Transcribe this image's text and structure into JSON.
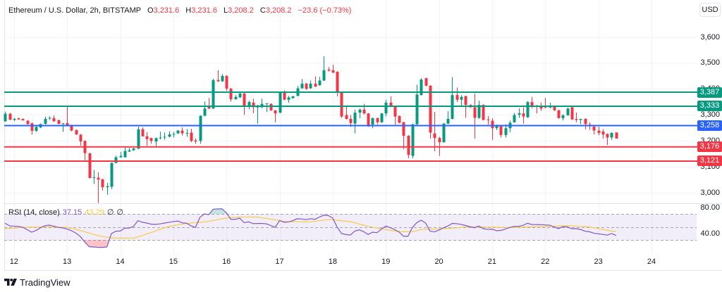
{
  "header": {
    "ohlc": [
      {
        "label": "O",
        "value": "3,231.6"
      },
      {
        "label": "H",
        "value": "3,231.6"
      },
      {
        "label": "L",
        "value": "3,208.2"
      },
      {
        "label": "C",
        "value": "3,208.2"
      }
    ],
    "change": "−23.6 (−0.73%)"
  },
  "price_axis": {
    "currency": "USD"
  },
  "footer": {
    "brand": "TradingView",
    "logo_icon": "tradingview-logo-icon"
  },
  "colors": {
    "up": "#089981",
    "down": "#f23645",
    "grid": "#f0f3fa",
    "border": "#e0e3eb",
    "rsi": "#7e57c2",
    "ma": "#f7c948",
    "rsi_band": "rgba(126,87,194,0.10)",
    "band_line": "#a3a6af",
    "oversold": "rgba(242,54,69,0.30)",
    "overbought": "rgba(8,153,129,0.25)"
  },
  "chart_data": [
    {
      "type": "bar",
      "title": "Ethereum / U.S. Dollar, 2h, BITSTAMP",
      "xlim": [
        -0.2,
        156.2
      ],
      "ylim": [
        2958,
        3743
      ],
      "grid": true,
      "x_ticks": [
        {
          "label": "12",
          "bar": 2
        },
        {
          "label": "13",
          "bar": 14
        },
        {
          "label": "14",
          "bar": 26
        },
        {
          "label": "15",
          "bar": 38
        },
        {
          "label": "16",
          "bar": 50
        },
        {
          "label": "17",
          "bar": 62
        },
        {
          "label": "18",
          "bar": 74
        },
        {
          "label": "19",
          "bar": 86
        },
        {
          "label": "20",
          "bar": 98
        },
        {
          "label": "21",
          "bar": 110
        },
        {
          "label": "22",
          "bar": 122
        },
        {
          "label": "23",
          "bar": 134
        },
        {
          "label": "24",
          "bar": 146
        }
      ],
      "y_ticks": [
        {
          "value": 3000,
          "label": "3,000"
        },
        {
          "value": 3100,
          "label": "3,100"
        },
        {
          "value": 3200,
          "label": "3,200"
        },
        {
          "value": 3300,
          "label": "3,300"
        },
        {
          "value": 3400,
          "label": "3,400"
        },
        {
          "value": 3500,
          "label": "3,500"
        },
        {
          "value": 3600,
          "label": "3,600"
        }
      ],
      "levels": [
        {
          "price": 3387,
          "label": "3,387",
          "color": "#089981"
        },
        {
          "price": 3333,
          "label": "3,333",
          "color": "#089981"
        },
        {
          "price": 3258,
          "label": "3,258",
          "color": "#2962ff"
        },
        {
          "price": 3176,
          "label": "3,176",
          "color": "#f23645"
        },
        {
          "price": 3121,
          "label": "3,121",
          "color": "#f23645"
        }
      ],
      "candles": [
        [
          3275,
          3312,
          3272,
          3304
        ],
        [
          3304,
          3307,
          3279,
          3281
        ],
        [
          3280,
          3288,
          3276,
          3284
        ],
        [
          3286,
          3289,
          3280,
          3282
        ],
        [
          3284,
          3286,
          3277,
          3279
        ],
        [
          3277,
          3279,
          3262,
          3264
        ],
        [
          3267,
          3270,
          3224,
          3238
        ],
        [
          3238,
          3256,
          3234,
          3253
        ],
        [
          3251,
          3266,
          3248,
          3264
        ],
        [
          3265,
          3293,
          3262,
          3284
        ],
        [
          3286,
          3294,
          3280,
          3288
        ],
        [
          3287,
          3297,
          3273,
          3275
        ],
        [
          3279,
          3281,
          3263,
          3265
        ],
        [
          3265,
          3268,
          3234,
          3267
        ],
        [
          3268,
          3335,
          3258,
          3260
        ],
        [
          3259,
          3262,
          3236,
          3239
        ],
        [
          3241,
          3243,
          3222,
          3224
        ],
        [
          3223,
          3226,
          3181,
          3197
        ],
        [
          3199,
          3201,
          3125,
          3152
        ],
        [
          3151,
          3153,
          3054,
          3056
        ],
        [
          3057,
          3087,
          3033,
          3059
        ],
        [
          3057,
          3078,
          2959,
          3050
        ],
        [
          3051,
          3053,
          3008,
          3020
        ],
        [
          3020,
          3037,
          2991,
          3024
        ],
        [
          3022,
          3116,
          3013,
          3114
        ],
        [
          3114,
          3142,
          3112,
          3136
        ],
        [
          3136,
          3156,
          3134,
          3141
        ],
        [
          3136,
          3177,
          3134,
          3160
        ],
        [
          3158,
          3172,
          3156,
          3163
        ],
        [
          3163,
          3172,
          3161,
          3170
        ],
        [
          3169,
          3254,
          3167,
          3244
        ],
        [
          3244,
          3251,
          3215,
          3217
        ],
        [
          3217,
          3233,
          3181,
          3206
        ],
        [
          3210,
          3212,
          3188,
          3199
        ],
        [
          3197,
          3212,
          3179,
          3210
        ],
        [
          3210,
          3235,
          3205,
          3212
        ],
        [
          3213,
          3232,
          3203,
          3215
        ],
        [
          3215,
          3236,
          3213,
          3224
        ],
        [
          3224,
          3234,
          3212,
          3226
        ],
        [
          3228,
          3241,
          3226,
          3239
        ],
        [
          3239,
          3251,
          3220,
          3228
        ],
        [
          3229,
          3245,
          3215,
          3230
        ],
        [
          3231,
          3246,
          3194,
          3199
        ],
        [
          3201,
          3209,
          3188,
          3197
        ],
        [
          3199,
          3298,
          3188,
          3296
        ],
        [
          3296,
          3351,
          3294,
          3324
        ],
        [
          3333,
          3365,
          3322,
          3324
        ],
        [
          3324,
          3439,
          3322,
          3434
        ],
        [
          3434,
          3472,
          3427,
          3429
        ],
        [
          3429,
          3457,
          3427,
          3450
        ],
        [
          3450,
          3452,
          3392,
          3401
        ],
        [
          3401,
          3403,
          3351,
          3360
        ],
        [
          3360,
          3376,
          3358,
          3369
        ],
        [
          3367,
          3384,
          3365,
          3382
        ],
        [
          3382,
          3384,
          3299,
          3333
        ],
        [
          3333,
          3355,
          3321,
          3349
        ],
        [
          3347,
          3362,
          3306,
          3329
        ],
        [
          3329,
          3338,
          3266,
          3331
        ],
        [
          3329,
          3362,
          3325,
          3342
        ],
        [
          3342,
          3345,
          3310,
          3344
        ],
        [
          3342,
          3344,
          3315,
          3317
        ],
        [
          3317,
          3318,
          3271,
          3305
        ],
        [
          3308,
          3387,
          3306,
          3385
        ],
        [
          3385,
          3394,
          3356,
          3358
        ],
        [
          3358,
          3373,
          3346,
          3367
        ],
        [
          3364,
          3373,
          3362,
          3371
        ],
        [
          3373,
          3411,
          3371,
          3402
        ],
        [
          3402,
          3438,
          3400,
          3420
        ],
        [
          3420,
          3423,
          3396,
          3400
        ],
        [
          3402,
          3432,
          3400,
          3420
        ],
        [
          3420,
          3448,
          3407,
          3409
        ],
        [
          3414,
          3446,
          3412,
          3432
        ],
        [
          3432,
          3526,
          3430,
          3472
        ],
        [
          3474,
          3484,
          3467,
          3470
        ],
        [
          3472,
          3493,
          3460,
          3463
        ],
        [
          3466,
          3468,
          3371,
          3387
        ],
        [
          3387,
          3389,
          3288,
          3293
        ],
        [
          3299,
          3335,
          3282,
          3284
        ],
        [
          3284,
          3299,
          3253,
          3268
        ],
        [
          3266,
          3320,
          3228,
          3308
        ],
        [
          3308,
          3324,
          3286,
          3320
        ],
        [
          3320,
          3342,
          3301,
          3305
        ],
        [
          3305,
          3307,
          3253,
          3255
        ],
        [
          3262,
          3289,
          3248,
          3287
        ],
        [
          3287,
          3289,
          3263,
          3271
        ],
        [
          3271,
          3307,
          3269,
          3305
        ],
        [
          3305,
          3358,
          3294,
          3347
        ],
        [
          3347,
          3371,
          3329,
          3333
        ],
        [
          3331,
          3333,
          3262,
          3293
        ],
        [
          3295,
          3297,
          3267,
          3269
        ],
        [
          3271,
          3273,
          3167,
          3219
        ],
        [
          3219,
          3221,
          3132,
          3145
        ],
        [
          3141,
          3266,
          3132,
          3263
        ],
        [
          3263,
          3416,
          3261,
          3378
        ],
        [
          3376,
          3441,
          3374,
          3436
        ],
        [
          3441,
          3443,
          3410,
          3412
        ],
        [
          3412,
          3414,
          3208,
          3231
        ],
        [
          3228,
          3311,
          3159,
          3210
        ],
        [
          3210,
          3215,
          3141,
          3194
        ],
        [
          3194,
          3268,
          3192,
          3266
        ],
        [
          3266,
          3314,
          3264,
          3284
        ],
        [
          3284,
          3445,
          3282,
          3376
        ],
        [
          3376,
          3405,
          3349,
          3358
        ],
        [
          3358,
          3376,
          3331,
          3369
        ],
        [
          3372,
          3374,
          3288,
          3338
        ],
        [
          3338,
          3340,
          3327,
          3329
        ],
        [
          3329,
          3382,
          3208,
          3288
        ],
        [
          3288,
          3354,
          3284,
          3338
        ],
        [
          3338,
          3340,
          3278,
          3280
        ],
        [
          3282,
          3295,
          3262,
          3280
        ],
        [
          3277,
          3287,
          3203,
          3248
        ],
        [
          3248,
          3262,
          3241,
          3257
        ],
        [
          3257,
          3259,
          3212,
          3222
        ],
        [
          3222,
          3263,
          3212,
          3248
        ],
        [
          3248,
          3277,
          3233,
          3269
        ],
        [
          3271,
          3307,
          3269,
          3299
        ],
        [
          3300,
          3325,
          3288,
          3306
        ],
        [
          3305,
          3329,
          3266,
          3293
        ],
        [
          3290,
          3353,
          3288,
          3349
        ],
        [
          3349,
          3369,
          3325,
          3331
        ],
        [
          3335,
          3338,
          3305,
          3331
        ],
        [
          3331,
          3347,
          3315,
          3324
        ],
        [
          3331,
          3365,
          3325,
          3329
        ],
        [
          3328,
          3347,
          3325,
          3331
        ],
        [
          3331,
          3333,
          3315,
          3317
        ],
        [
          3317,
          3319,
          3285,
          3287
        ],
        [
          3287,
          3302,
          3278,
          3298
        ],
        [
          3298,
          3327,
          3296,
          3324
        ],
        [
          3329,
          3331,
          3280,
          3282
        ],
        [
          3284,
          3309,
          3271,
          3280
        ],
        [
          3280,
          3284,
          3264,
          3284
        ],
        [
          3284,
          3286,
          3244,
          3264
        ],
        [
          3262,
          3271,
          3242,
          3256
        ],
        [
          3254,
          3262,
          3224,
          3239
        ],
        [
          3239,
          3254,
          3221,
          3230
        ],
        [
          3235,
          3244,
          3208,
          3224
        ],
        [
          3226,
          3228,
          3183,
          3212
        ],
        [
          3212,
          3232,
          3203,
          3230
        ],
        [
          3231.6,
          3231.6,
          3208.2,
          3208.2
        ]
      ]
    },
    {
      "type": "line",
      "title": "RSI (14, close)",
      "legend_values": [
        "37.15",
        "43.29",
        "∅",
        "∅"
      ],
      "ylim": [
        7.6,
        85.5
      ],
      "y_ticks": [
        {
          "value": 80,
          "label": "80.00"
        },
        {
          "value": 40,
          "label": "40.00"
        }
      ],
      "bands": {
        "upper": 70,
        "middle": 50,
        "lower": 30
      },
      "rsi_values": [
        56,
        52,
        51.5,
        51,
        49.7,
        46,
        42.2,
        45,
        49,
        52.3,
        53,
        51.5,
        49.6,
        48.8,
        47,
        44.5,
        40.7,
        35.5,
        27,
        19.8,
        19.5,
        18.9,
        18.8,
        19.5,
        40,
        43.8,
        44,
        48.4,
        48.6,
        51,
        60,
        57.5,
        56.3,
        54.5,
        54.3,
        55,
        56.3,
        57.4,
        58.5,
        59.4,
        56.6,
        56,
        52,
        49.5,
        65,
        70.3,
        69.3,
        77.6,
        77.9,
        78.2,
        72,
        62,
        62,
        63.8,
        56.8,
        58.2,
        55.4,
        55.6,
        55.7,
        55.1,
        52.5,
        49.7,
        60.2,
        57.5,
        58,
        60,
        62.9,
        62.6,
        61.5,
        63,
        62,
        65.5,
        68.3,
        67.8,
        64,
        50,
        40.2,
        38.6,
        37.9,
        44,
        45.8,
        43,
        38.8,
        42.2,
        41.5,
        47,
        51.8,
        49.2,
        46.3,
        42.4,
        36,
        36,
        49.5,
        57,
        60.6,
        56,
        43.7,
        42.7,
        45.5,
        49,
        51.7,
        55.7,
        55.3,
        54.2,
        52.5,
        50.6,
        49,
        51.8,
        47.5,
        46.6,
        46.8,
        44.5,
        44.9,
        47.2,
        49.5,
        51.2,
        51.2,
        52.8,
        55.9,
        54,
        53.9,
        53.8,
        53.4,
        53,
        50.3,
        47.7,
        50.6,
        50.3,
        47.6,
        47.6,
        46.4,
        43.8,
        42.9,
        40.7,
        39.7,
        38.8,
        37.7,
        40.2,
        37.15
      ],
      "ma_values": [
        47.6,
        48.1,
        48.5,
        49.0,
        49.5,
        49.7,
        49.9,
        50.0,
        50.2,
        50.4,
        50.4,
        50.2,
        50.0,
        49.8,
        49.5,
        48.2,
        46.5,
        44.7,
        42.8,
        40.8,
        38.9,
        36.9,
        35.7,
        34.6,
        33.4,
        33.2,
        33.2,
        33.2,
        33.2,
        33.2,
        35.0,
        37.1,
        39.9,
        41.6,
        44.2,
        46.6,
        49.0,
        51.2,
        52.3,
        53.5,
        54.6,
        55.7,
        56.3,
        56.9,
        57.5,
        58.1,
        59.0,
        60.3,
        61.5,
        62.8,
        64.0,
        64.6,
        65.2,
        65.7,
        65.7,
        65.7,
        65.7,
        65.6,
        64.5,
        63.4,
        62.3,
        61.2,
        60.1,
        58.9,
        58.4,
        58.4,
        58.4,
        58.4,
        58.4,
        58.5,
        59.3,
        60.0,
        60.8,
        61.6,
        61.4,
        60.6,
        59.7,
        59.2,
        58.2,
        56.8,
        54.8,
        52.9,
        51.2,
        50.0,
        48.7,
        47.4,
        46.2,
        45.0,
        44.1,
        43.2,
        43.0,
        43.0,
        43.0,
        44.6,
        46.2,
        46.6,
        46.9,
        47.1,
        47.3,
        47.6,
        47.9,
        48.5,
        49.0,
        49.6,
        50.3,
        50.4,
        50.3,
        50.2,
        50.1,
        50.0,
        49.9,
        49.8,
        49.7,
        49.6,
        49.5,
        49.7,
        49.9,
        50.1,
        50.3,
        50.5,
        50.7,
        50.8,
        51.0,
        51.2,
        51.5,
        51.7,
        52.0,
        52.3,
        51.9,
        51.5,
        51.1,
        50.7,
        50.3,
        49.0,
        47.7,
        46.6,
        45.2,
        44.0,
        43.29
      ]
    }
  ]
}
